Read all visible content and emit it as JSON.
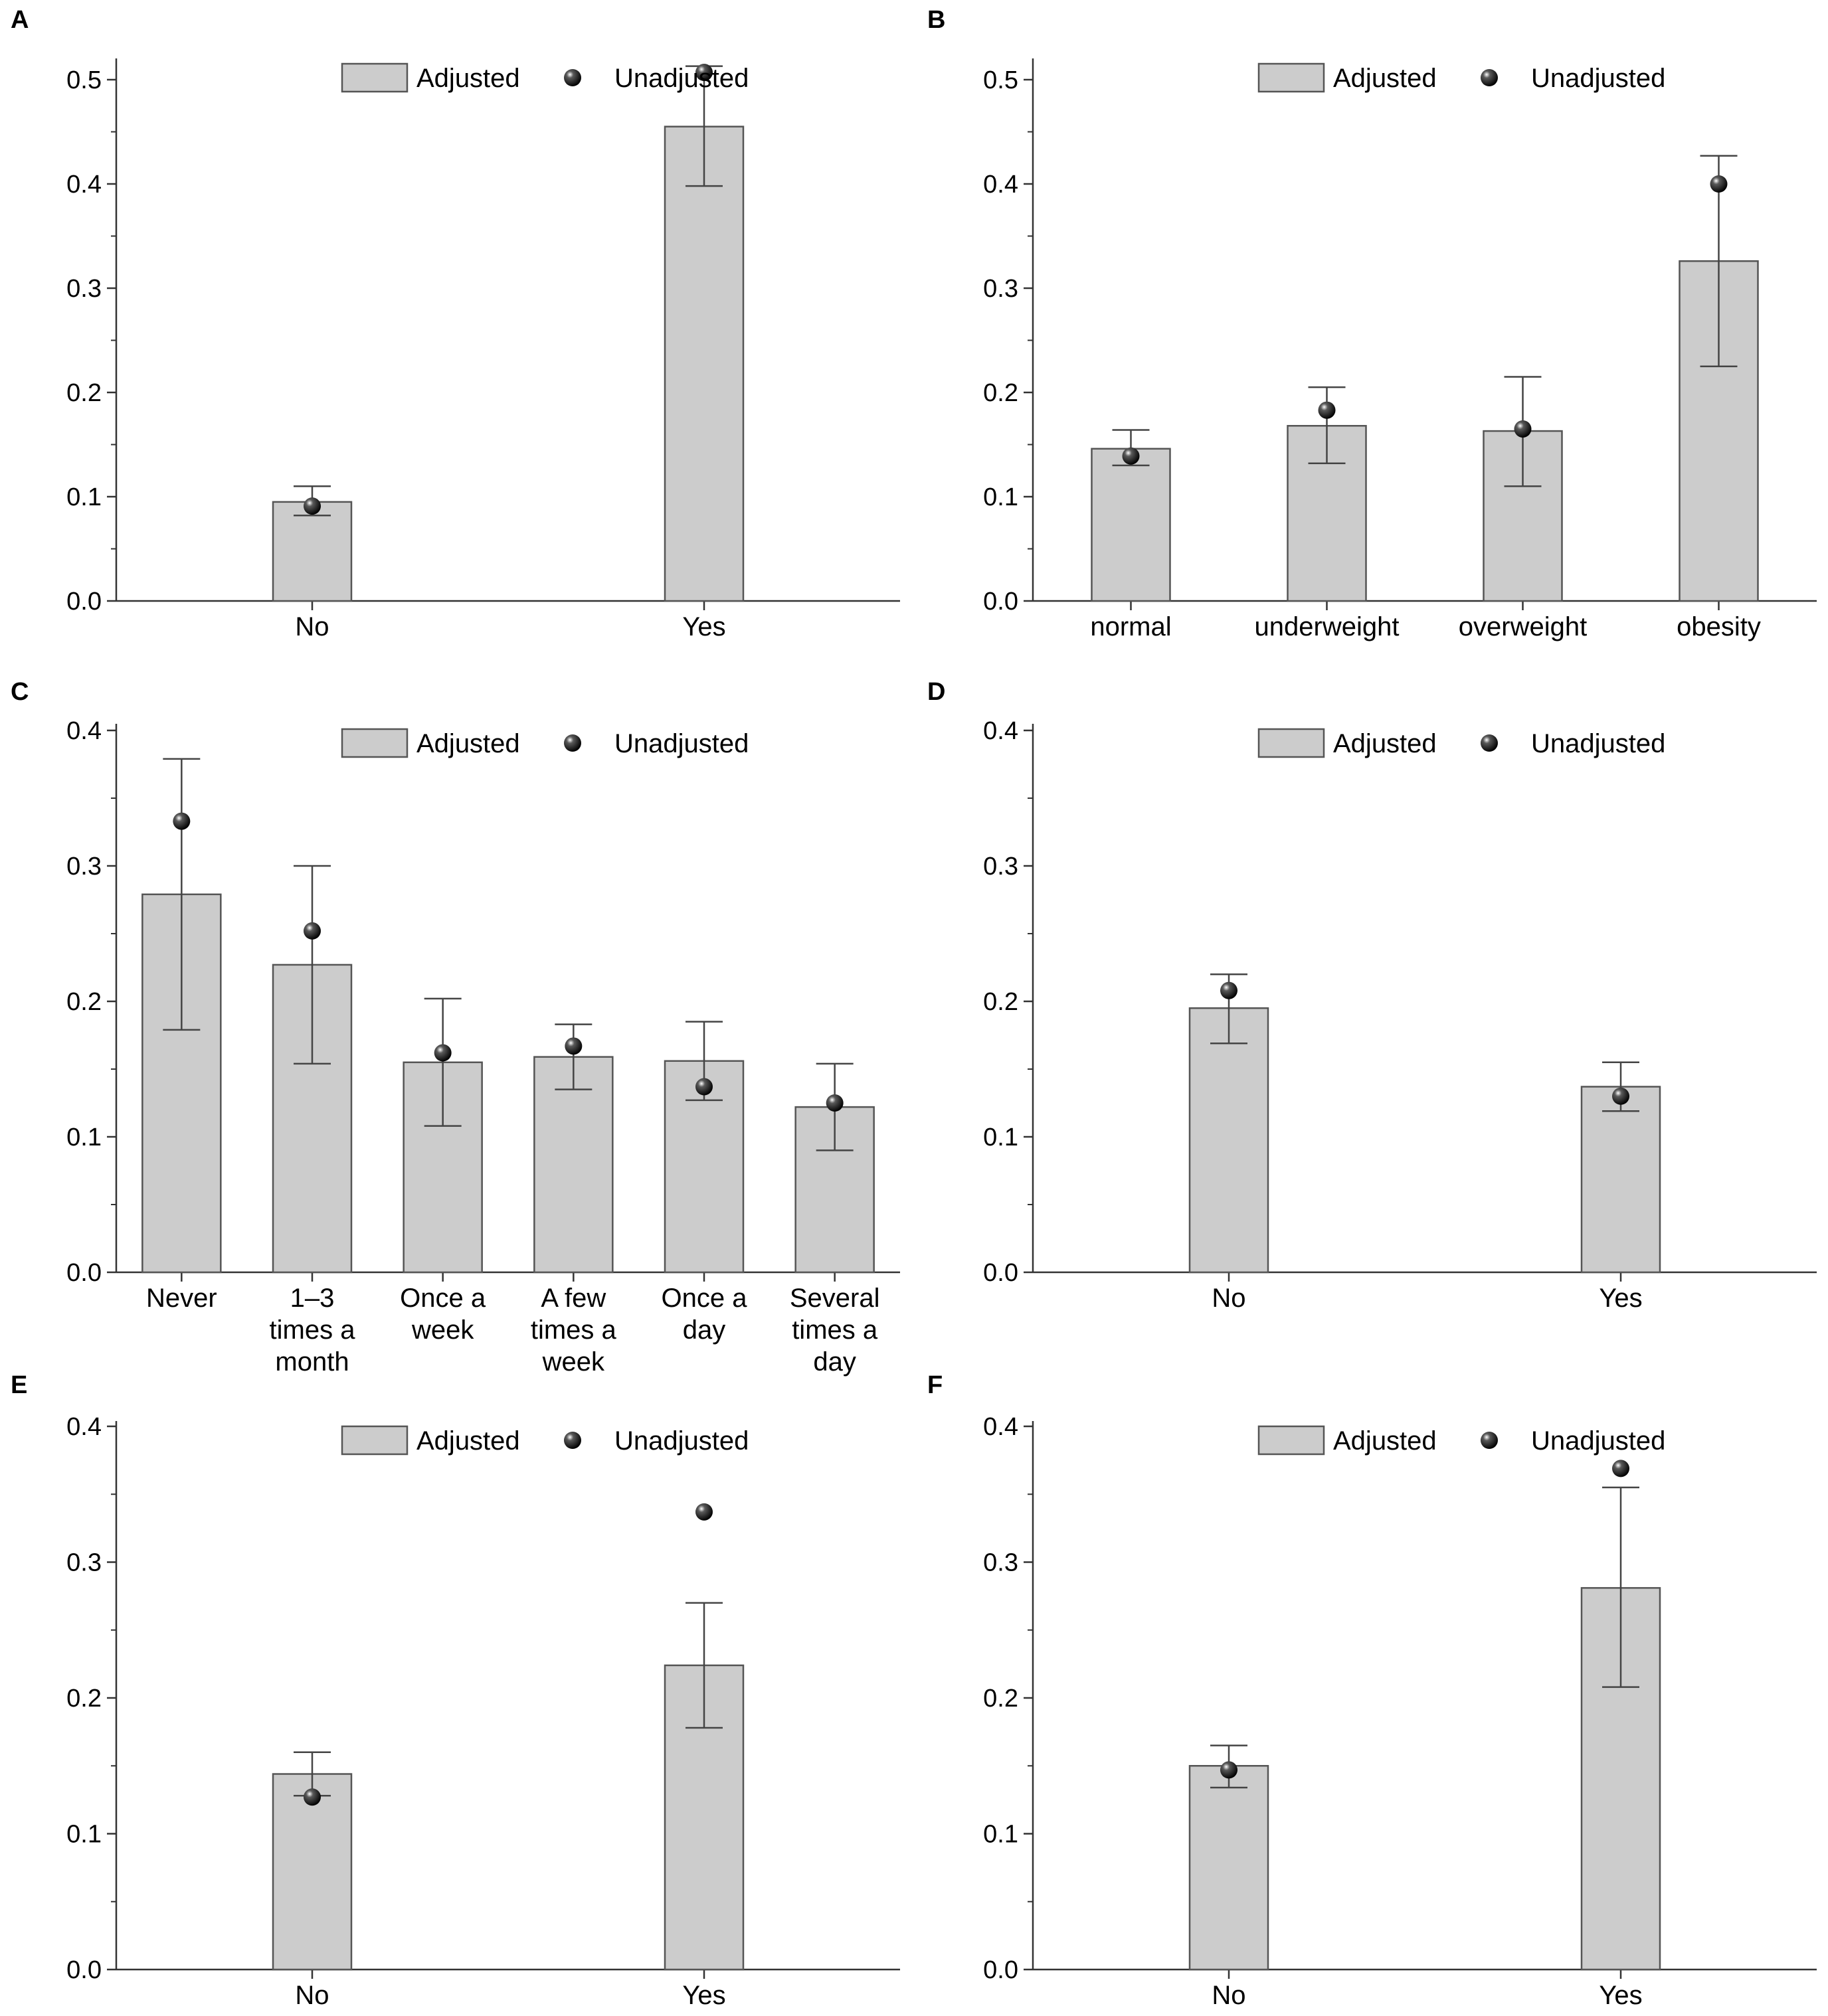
{
  "colors": {
    "bar_fill": "#cccccc",
    "bar_stroke": "#555555",
    "axis": "#333333",
    "error_bar": "#444444",
    "dot": "#000000"
  },
  "legend": {
    "adjusted_label": "Adjusted",
    "unadjusted_label": "Unadjusted"
  },
  "chart_data": [
    {
      "panel": "A",
      "type": "bar",
      "categories": [
        [
          "No"
        ],
        [
          "Yes"
        ]
      ],
      "ylim": [
        0,
        0.52
      ],
      "yticks": [
        "0.0",
        "0.1",
        "0.2",
        "0.3",
        "0.4",
        "0.5"
      ],
      "series": [
        {
          "name": "Adjusted",
          "values": [
            0.095,
            0.455
          ],
          "err_low": [
            0.082,
            0.398
          ],
          "err_high": [
            0.11,
            0.513
          ]
        },
        {
          "name": "Unadjusted",
          "values": [
            0.091,
            0.507
          ]
        }
      ],
      "legend_position": "top-center"
    },
    {
      "panel": "B",
      "type": "bar",
      "categories": [
        [
          "normal"
        ],
        [
          "underweight"
        ],
        [
          "overweight"
        ],
        [
          "obesity"
        ]
      ],
      "ylim": [
        0,
        0.52
      ],
      "yticks": [
        "0.0",
        "0.1",
        "0.2",
        "0.3",
        "0.4",
        "0.5"
      ],
      "series": [
        {
          "name": "Adjusted",
          "values": [
            0.146,
            0.168,
            0.163,
            0.326
          ],
          "err_low": [
            0.13,
            0.132,
            0.11,
            0.225
          ],
          "err_high": [
            0.164,
            0.205,
            0.215,
            0.427
          ]
        },
        {
          "name": "Unadjusted",
          "values": [
            0.139,
            0.183,
            0.165,
            0.4
          ]
        }
      ],
      "legend_position": "top-center"
    },
    {
      "panel": "C",
      "type": "bar",
      "categories": [
        [
          "Never"
        ],
        [
          "1–3",
          "times a",
          "month"
        ],
        [
          "Once a",
          "week"
        ],
        [
          "A few",
          "times a",
          "week"
        ],
        [
          "Once a",
          "day"
        ],
        [
          "Several",
          "times a",
          "day"
        ]
      ],
      "ylim": [
        0,
        0.4
      ],
      "yticks": [
        "0.0",
        "0.1",
        "0.2",
        "0.3",
        "0.4"
      ],
      "series": [
        {
          "name": "Adjusted",
          "values": [
            0.279,
            0.227,
            0.155,
            0.159,
            0.156,
            0.122
          ],
          "err_low": [
            0.179,
            0.154,
            0.108,
            0.135,
            0.127,
            0.09
          ],
          "err_high": [
            0.379,
            0.3,
            0.202,
            0.183,
            0.185,
            0.154
          ]
        },
        {
          "name": "Unadjusted",
          "values": [
            0.333,
            0.252,
            0.162,
            0.167,
            0.137,
            0.125
          ]
        }
      ],
      "legend_position": "top-center"
    },
    {
      "panel": "D",
      "type": "bar",
      "categories": [
        [
          "No"
        ],
        [
          "Yes"
        ]
      ],
      "ylim": [
        0,
        0.4
      ],
      "yticks": [
        "0.0",
        "0.1",
        "0.2",
        "0.3",
        "0.4"
      ],
      "series": [
        {
          "name": "Adjusted",
          "values": [
            0.195,
            0.137
          ],
          "err_low": [
            0.169,
            0.119
          ],
          "err_high": [
            0.22,
            0.155
          ]
        },
        {
          "name": "Unadjusted",
          "values": [
            0.208,
            0.13
          ]
        }
      ],
      "legend_position": "top-center"
    },
    {
      "panel": "E",
      "type": "bar",
      "categories": [
        [
          "No"
        ],
        [
          "Yes"
        ]
      ],
      "ylim": [
        0,
        0.4
      ],
      "yticks": [
        "0.0",
        "0.1",
        "0.2",
        "0.3",
        "0.4"
      ],
      "series": [
        {
          "name": "Adjusted",
          "values": [
            0.144,
            0.224
          ],
          "err_low": [
            0.128,
            0.178
          ],
          "err_high": [
            0.16,
            0.27
          ]
        },
        {
          "name": "Unadjusted",
          "values": [
            0.127,
            0.337
          ]
        }
      ],
      "legend_position": "top-center"
    },
    {
      "panel": "F",
      "type": "bar",
      "categories": [
        [
          "No"
        ],
        [
          "Yes"
        ]
      ],
      "ylim": [
        0,
        0.4
      ],
      "yticks": [
        "0.0",
        "0.1",
        "0.2",
        "0.3",
        "0.4"
      ],
      "series": [
        {
          "name": "Adjusted",
          "values": [
            0.15,
            0.281
          ],
          "err_low": [
            0.134,
            0.208
          ],
          "err_high": [
            0.165,
            0.355
          ]
        },
        {
          "name": "Unadjusted",
          "values": [
            0.147,
            0.369
          ]
        }
      ],
      "legend_position": "top-center"
    }
  ]
}
